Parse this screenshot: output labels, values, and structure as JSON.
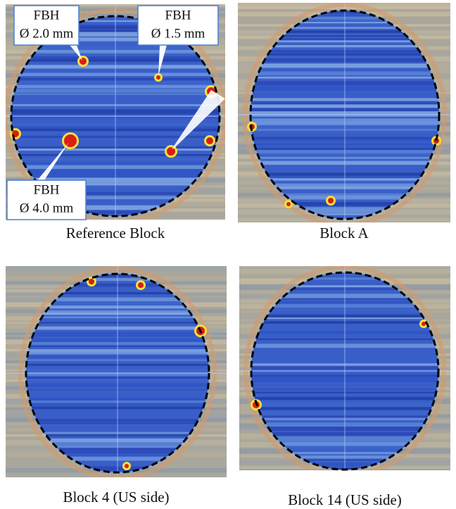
{
  "panels": [
    {
      "caption": "Reference Block",
      "annotations": [
        {
          "lines": [
            "FBH",
            "Ø 2.0 mm"
          ]
        },
        {
          "lines": [
            "FBH",
            "Ø 1.5 mm"
          ]
        },
        {
          "lines": [
            "FBH",
            "Ø 4.0 mm"
          ]
        }
      ]
    },
    {
      "caption": "Block A"
    },
    {
      "caption": "Block 4 (US side)"
    },
    {
      "caption": "Block 14 (US side)"
    }
  ]
}
